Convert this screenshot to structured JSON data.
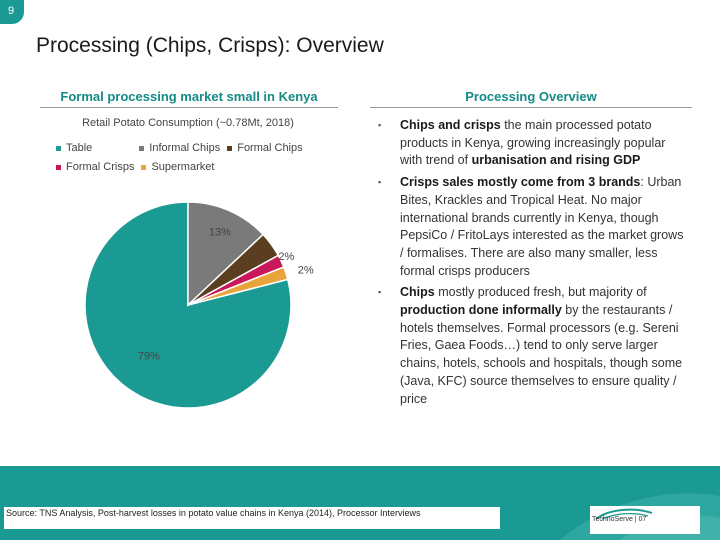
{
  "slide_number": "9",
  "title": "Processing (Chips, Crisps): Overview",
  "left_column": {
    "heading": "Formal processing market small in Kenya"
  },
  "right_column": {
    "heading": "Processing Overview",
    "bullets": [
      {
        "bold": "Chips and crisps",
        "text1": " the main processed potato products in Kenya, growing increasingly popular with trend of ",
        "bold2": "urbanisation and rising GDP",
        "text2": ""
      },
      {
        "bold": "Crisps sales mostly come from 3 brands",
        "text1": ": Urban Bites, Krackles and Tropical Heat. No major international brands currently in Kenya, though PepsiCo / FritoLays interested as the market grows / formalises. There are also many smaller, less formal crisps producers",
        "bold2": "",
        "text2": ""
      },
      {
        "bold": "Chips",
        "text1": " mostly produced fresh, but majority of ",
        "bold2": "production done informally",
        "text2": " by the restaurants / hotels themselves. Formal processors (e.g. Sereni Fries, Gaea Foods…) tend to only serve larger chains, hotels, schools and hospitals, though some (Java, KFC) source themselves to ensure quality / price"
      }
    ]
  },
  "chart_data": {
    "type": "pie",
    "title": "Retail Potato Consumption (~0.78Mt, 2018)",
    "legend": "top",
    "series": [
      {
        "name": "Table",
        "value": 79,
        "label": "79%",
        "color": "#1a9a93"
      },
      {
        "name": "Informal Chips",
        "value": 13,
        "label": "13%",
        "color": "#7a7a7a"
      },
      {
        "name": "Formal Chips",
        "value": 4,
        "label": "",
        "color": "#5a3e1f"
      },
      {
        "name": "Formal Crisps",
        "value": 2,
        "label": "2%",
        "color": "#c8175a"
      },
      {
        "name": "Supermarket",
        "value": 2,
        "label": "2%",
        "color": "#e8a33a"
      }
    ]
  },
  "source": "Source: TNS Analysis, Post-harvest losses in potato value chains in Kenya (2014), Processor Interviews",
  "footer_brand": "TechnoServe | 07",
  "colors": {
    "accent": "#1a9a93",
    "heading": "#138b86"
  }
}
